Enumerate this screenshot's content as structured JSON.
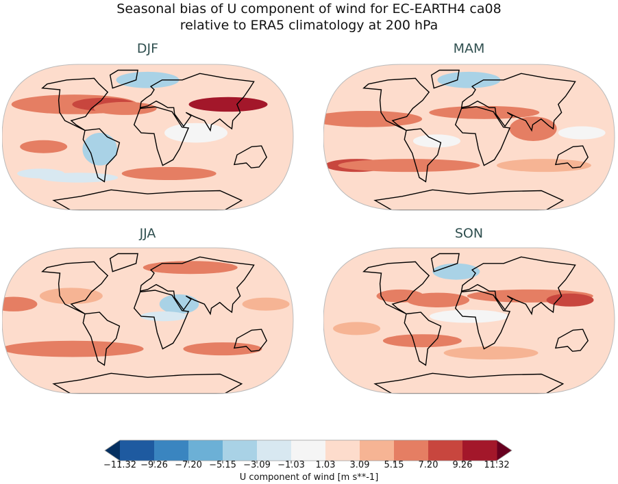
{
  "title_line1": "Seasonal bias of U component of wind for EC-EARTH4 ca08",
  "title_line2": "relative to ERA5 climatology at 200 hPa",
  "panels": [
    {
      "label": "DJF"
    },
    {
      "label": "MAM"
    },
    {
      "label": "JJA"
    },
    {
      "label": "SON"
    }
  ],
  "colorbar": {
    "label": "U component of wind [m s**-1]",
    "ticks": [
      "−11.32",
      "−9.26",
      "−7.20",
      "−5.15",
      "−3.09",
      "−1.03",
      "1.03",
      "3.09",
      "5.15",
      "7.20",
      "9.26",
      "11.32"
    ],
    "colors": [
      "#1e5aa0",
      "#3a85c0",
      "#6cb0d6",
      "#a9d2e6",
      "#d8e8f1",
      "#f5f5f5",
      "#fddccc",
      "#f6b494",
      "#e57e63",
      "#c8463e",
      "#a3172a"
    ],
    "extend_low_color": "#053061",
    "extend_high_color": "#67001f"
  }
}
